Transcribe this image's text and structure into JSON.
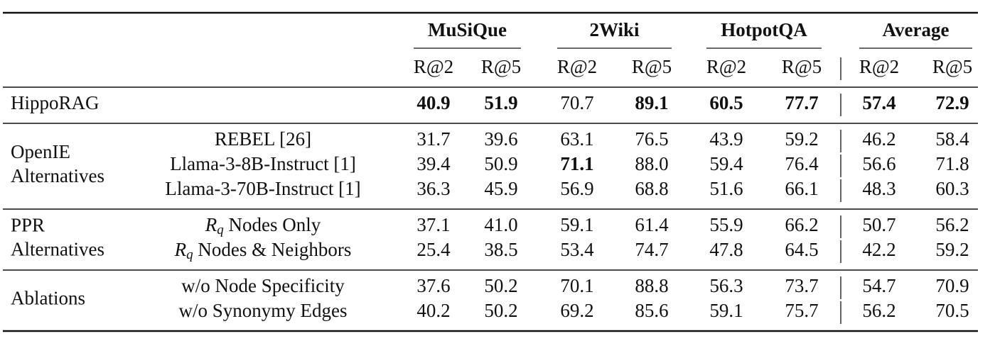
{
  "table": {
    "groups": [
      "MuSiQue",
      "2Wiki",
      "HotpotQA",
      "Average"
    ],
    "metrics": [
      "R@2",
      "R@5",
      "R@2",
      "R@5",
      "R@2",
      "R@5",
      "R@2",
      "R@5"
    ],
    "sections": [
      {
        "label": [
          "HippoRAG"
        ],
        "rows": [
          {
            "cells": [
              {
                "value": "40.9",
                "bold": true
              },
              {
                "value": "51.9",
                "bold": true
              },
              {
                "value": "70.7"
              },
              {
                "value": "89.1",
                "bold": true
              },
              {
                "value": "60.5",
                "bold": true
              },
              {
                "value": "77.7",
                "bold": true
              },
              {
                "value": "57.4",
                "bold": true
              },
              {
                "value": "72.9",
                "bold": true
              }
            ]
          }
        ]
      },
      {
        "label": [
          "OpenIE",
          "Alternatives"
        ],
        "rows": [
          {
            "method": "REBEL [26]",
            "cells": [
              {
                "value": "31.7"
              },
              {
                "value": "39.6"
              },
              {
                "value": "63.1"
              },
              {
                "value": "76.5"
              },
              {
                "value": "43.9"
              },
              {
                "value": "59.2"
              },
              {
                "value": "46.2"
              },
              {
                "value": "58.4"
              }
            ]
          },
          {
            "method": "Llama-3-8B-Instruct [1]",
            "cells": [
              {
                "value": "39.4"
              },
              {
                "value": "50.9"
              },
              {
                "value": "71.1",
                "bold": true
              },
              {
                "value": "88.0"
              },
              {
                "value": "59.4"
              },
              {
                "value": "76.4"
              },
              {
                "value": "56.6"
              },
              {
                "value": "71.8"
              }
            ]
          },
          {
            "method": "Llama-3-70B-Instruct [1]",
            "cells": [
              {
                "value": "36.3"
              },
              {
                "value": "45.9"
              },
              {
                "value": "56.9"
              },
              {
                "value": "68.8"
              },
              {
                "value": "51.6"
              },
              {
                "value": "66.1"
              },
              {
                "value": "48.3"
              },
              {
                "value": "60.3"
              }
            ]
          }
        ]
      },
      {
        "label": [
          "PPR",
          "Alternatives"
        ],
        "rows": [
          {
            "method_math": "R",
            "method_sub": "q",
            "method": "Nodes Only",
            "cells": [
              {
                "value": "37.1"
              },
              {
                "value": "41.0"
              },
              {
                "value": "59.1"
              },
              {
                "value": "61.4"
              },
              {
                "value": "55.9"
              },
              {
                "value": "66.2"
              },
              {
                "value": "50.7"
              },
              {
                "value": "56.2"
              }
            ]
          },
          {
            "method_math": "R",
            "method_sub": "q",
            "method": "Nodes & Neighbors",
            "cells": [
              {
                "value": "25.4"
              },
              {
                "value": "38.5"
              },
              {
                "value": "53.4"
              },
              {
                "value": "74.7"
              },
              {
                "value": "47.8"
              },
              {
                "value": "64.5"
              },
              {
                "value": "42.2"
              },
              {
                "value": "59.2"
              }
            ]
          }
        ]
      },
      {
        "label": [
          "Ablations"
        ],
        "rows": [
          {
            "method": "w/o Node Specificity",
            "cells": [
              {
                "value": "37.6"
              },
              {
                "value": "50.2"
              },
              {
                "value": "70.1"
              },
              {
                "value": "88.8"
              },
              {
                "value": "56.3"
              },
              {
                "value": "73.7"
              },
              {
                "value": "54.7"
              },
              {
                "value": "70.9"
              }
            ]
          },
          {
            "method": "w/o Synonymy Edges",
            "cells": [
              {
                "value": "40.2"
              },
              {
                "value": "50.2"
              },
              {
                "value": "69.2"
              },
              {
                "value": "85.6"
              },
              {
                "value": "59.1"
              },
              {
                "value": "75.7"
              },
              {
                "value": "56.2"
              },
              {
                "value": "70.5"
              }
            ]
          }
        ]
      }
    ]
  }
}
